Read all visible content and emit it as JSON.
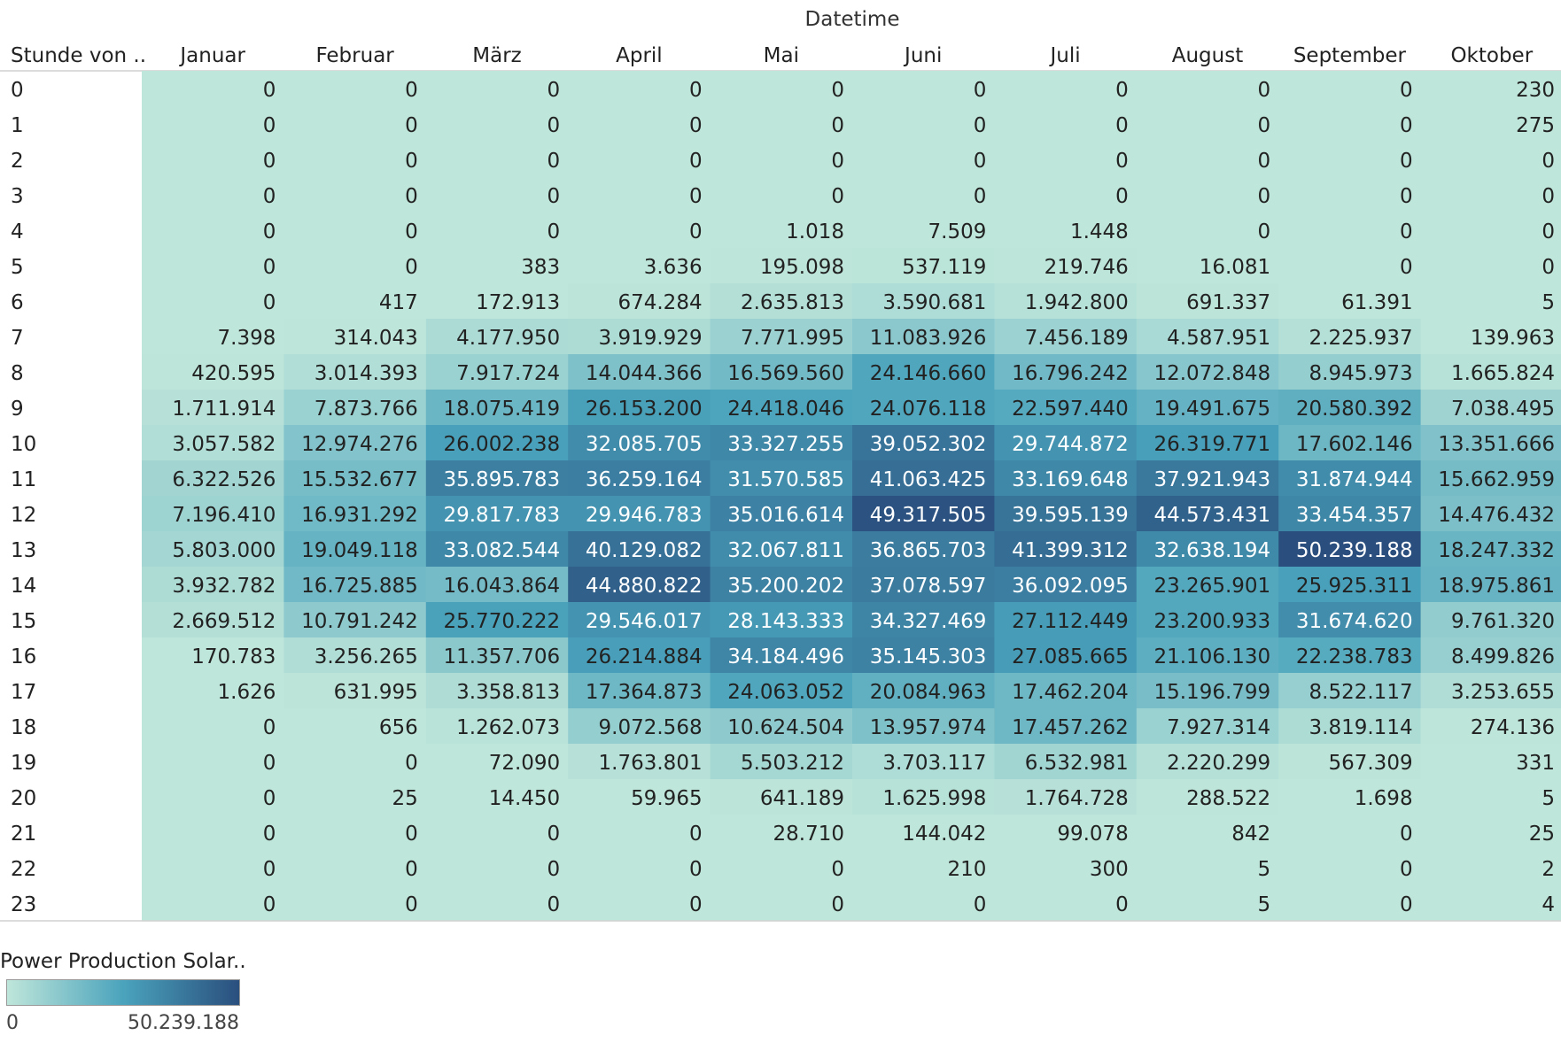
{
  "chart_data": {
    "type": "heatmap",
    "column_header": "Datetime",
    "row_header": "Stunde von ..",
    "categories": [
      "Januar",
      "Februar",
      "März",
      "April",
      "Mai",
      "Juni",
      "Juli",
      "August",
      "September",
      "Oktober"
    ],
    "rows": [
      "0",
      "1",
      "2",
      "3",
      "4",
      "5",
      "6",
      "7",
      "8",
      "9",
      "10",
      "11",
      "12",
      "13",
      "14",
      "15",
      "16",
      "17",
      "18",
      "19",
      "20",
      "21",
      "22",
      "23"
    ],
    "values": [
      [
        0,
        0,
        0,
        0,
        0,
        0,
        0,
        0,
        0,
        230
      ],
      [
        0,
        0,
        0,
        0,
        0,
        0,
        0,
        0,
        0,
        275
      ],
      [
        0,
        0,
        0,
        0,
        0,
        0,
        0,
        0,
        0,
        0
      ],
      [
        0,
        0,
        0,
        0,
        0,
        0,
        0,
        0,
        0,
        0
      ],
      [
        0,
        0,
        0,
        0,
        1018,
        7509,
        1448,
        0,
        0,
        0
      ],
      [
        0,
        0,
        383,
        3636,
        195098,
        537119,
        219746,
        16081,
        0,
        0
      ],
      [
        0,
        417,
        172913,
        674284,
        2635813,
        3590681,
        1942800,
        691337,
        61391,
        5
      ],
      [
        7398,
        314043,
        4177950,
        3919929,
        7771995,
        11083926,
        7456189,
        4587951,
        2225937,
        139963
      ],
      [
        420595,
        3014393,
        7917724,
        14044366,
        16569560,
        24146660,
        16796242,
        12072848,
        8945973,
        1665824
      ],
      [
        1711914,
        7873766,
        18075419,
        26153200,
        24418046,
        24076118,
        22597440,
        19491675,
        20580392,
        7038495
      ],
      [
        3057582,
        12974276,
        26002238,
        32085705,
        33327255,
        39052302,
        29744872,
        26319771,
        17602146,
        13351666
      ],
      [
        6322526,
        15532677,
        35895783,
        36259164,
        31570585,
        41063425,
        33169648,
        37921943,
        31874944,
        15662959
      ],
      [
        7196410,
        16931292,
        29817783,
        29946783,
        35016614,
        49317505,
        39595139,
        44573431,
        33454357,
        14476432
      ],
      [
        5803000,
        19049118,
        33082544,
        40129082,
        32067811,
        36865703,
        41399312,
        32638194,
        50239188,
        18247332
      ],
      [
        3932782,
        16725885,
        16043864,
        44880822,
        35200202,
        37078597,
        36092095,
        23265901,
        25925311,
        18975861
      ],
      [
        2669512,
        10791242,
        25770222,
        29546017,
        28143333,
        34327469,
        27112449,
        23200933,
        31674620,
        9761320
      ],
      [
        170783,
        3256265,
        11357706,
        26214884,
        34184496,
        35145303,
        27085665,
        21106130,
        22238783,
        8499826
      ],
      [
        1626,
        631995,
        3358813,
        17364873,
        24063052,
        20084963,
        17462204,
        15196799,
        8522117,
        3253655
      ],
      [
        0,
        656,
        1262073,
        9072568,
        10624504,
        13957974,
        17457262,
        7927314,
        3819114,
        274136
      ],
      [
        0,
        0,
        72090,
        1763801,
        5503212,
        3703117,
        6532981,
        2220299,
        567309,
        331
      ],
      [
        0,
        25,
        14450,
        59965,
        641189,
        1625998,
        1764728,
        288522,
        1698,
        5
      ],
      [
        0,
        0,
        0,
        0,
        28710,
        144042,
        99078,
        842,
        0,
        25
      ],
      [
        0,
        0,
        0,
        0,
        0,
        210,
        300,
        5,
        0,
        2
      ],
      [
        0,
        0,
        0,
        0,
        0,
        0,
        0,
        5,
        0,
        4
      ]
    ],
    "color_range": [
      0,
      50239188
    ],
    "colors": [
      "#bfe6da",
      "#4aa3bc",
      "#2a4f7e"
    ],
    "legend": {
      "title": "Power Production Solar..",
      "min_label": "0",
      "max_label": "50.239.188",
      "position": "bottom-left"
    }
  }
}
